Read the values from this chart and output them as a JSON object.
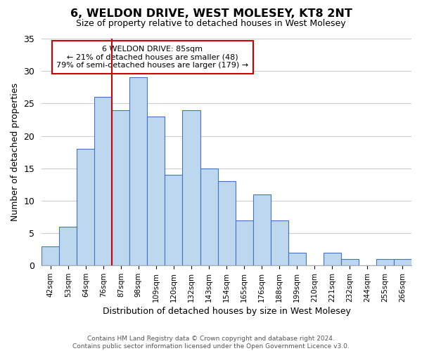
{
  "title": "6, WELDON DRIVE, WEST MOLESEY, KT8 2NT",
  "subtitle": "Size of property relative to detached houses in West Molesey",
  "xlabel": "Distribution of detached houses by size in West Molesey",
  "ylabel": "Number of detached properties",
  "footer_line1": "Contains HM Land Registry data © Crown copyright and database right 2024.",
  "footer_line2": "Contains public sector information licensed under the Open Government Licence v3.0.",
  "bins": [
    "42sqm",
    "53sqm",
    "64sqm",
    "76sqm",
    "87sqm",
    "98sqm",
    "109sqm",
    "120sqm",
    "132sqm",
    "143sqm",
    "154sqm",
    "165sqm",
    "176sqm",
    "188sqm",
    "199sqm",
    "210sqm",
    "221sqm",
    "232sqm",
    "244sqm",
    "255sqm",
    "266sqm"
  ],
  "values": [
    3,
    6,
    18,
    26,
    24,
    29,
    23,
    14,
    24,
    15,
    13,
    7,
    11,
    7,
    2,
    0,
    2,
    1,
    0,
    1,
    1
  ],
  "bar_color": "#bdd7ee",
  "bar_edge_color": "#4472c4",
  "reference_line_index": 4,
  "reference_line_color": "#cc0000",
  "ylim": [
    0,
    35
  ],
  "yticks": [
    0,
    5,
    10,
    15,
    20,
    25,
    30,
    35
  ],
  "annotation_title": "6 WELDON DRIVE: 85sqm",
  "annotation_line1": "← 21% of detached houses are smaller (48)",
  "annotation_line2": "79% of semi-detached houses are larger (179) →",
  "annotation_box_edge": "#cc0000",
  "background_color": "#ffffff",
  "grid_color": "#cccccc"
}
